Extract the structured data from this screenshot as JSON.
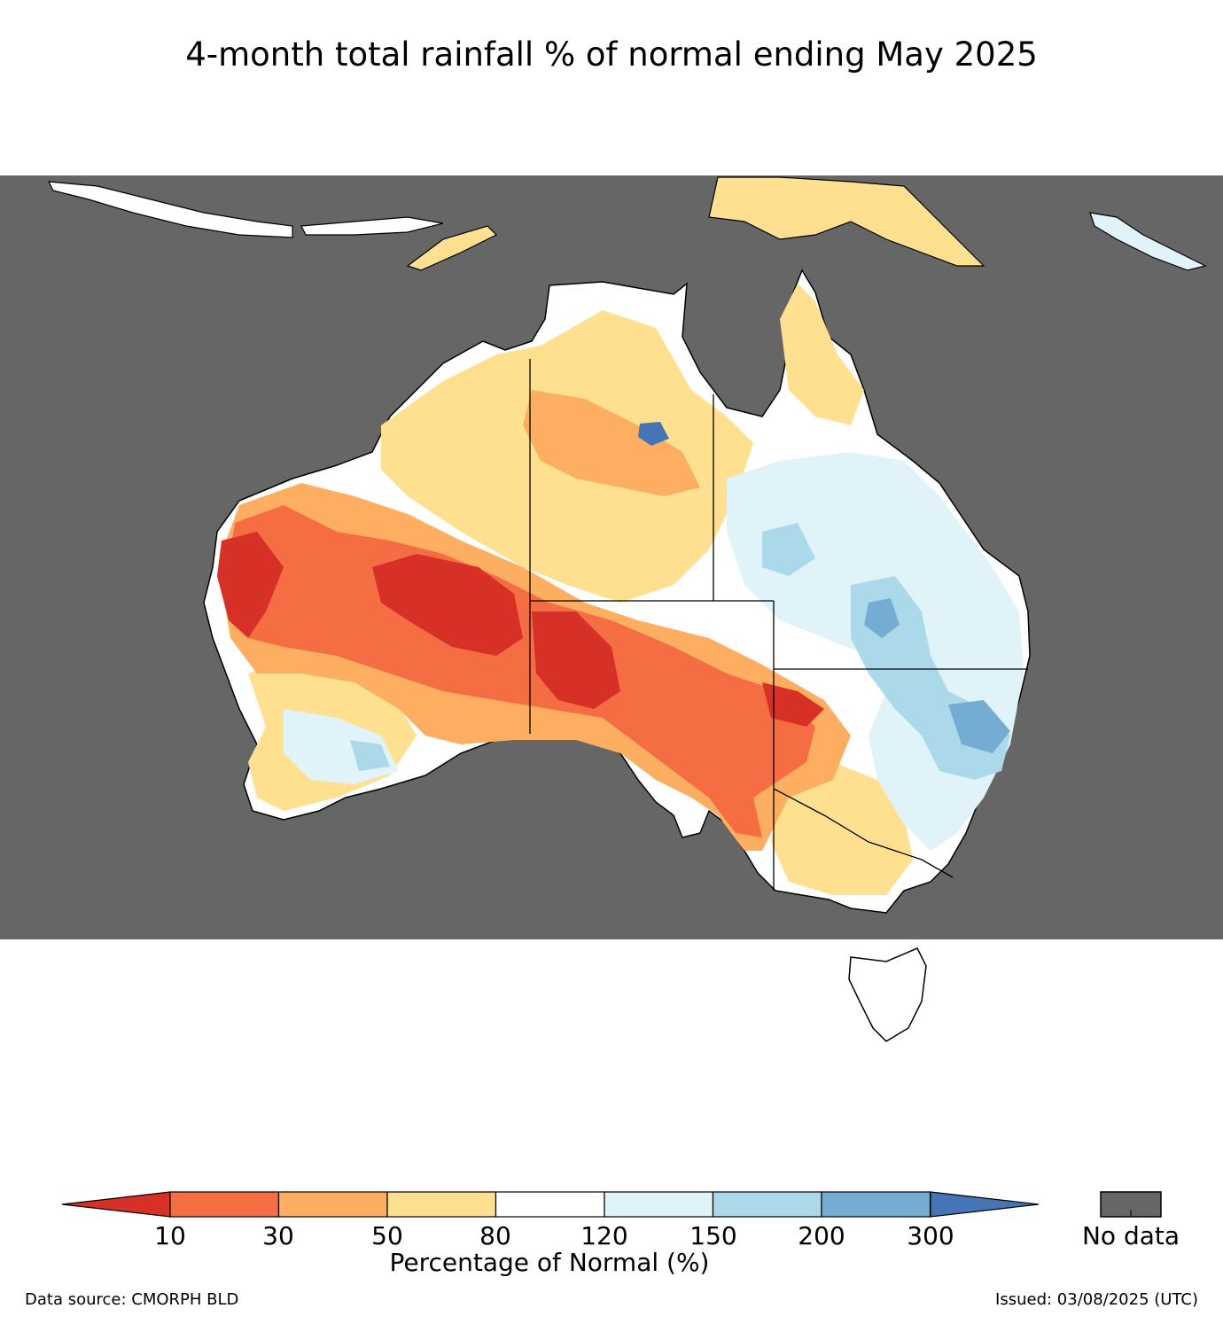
{
  "title": "4-month total rainfall % of normal ending May 2025",
  "legend": {
    "ticks": [
      "10",
      "30",
      "50",
      "80",
      "120",
      "150",
      "200",
      "300"
    ],
    "label": "Percentage of Normal (%)",
    "colors": [
      "#d73027",
      "#f46d43",
      "#fdae61",
      "#fee090",
      "#ffffff",
      "#e0f3f8",
      "#abd9e9",
      "#74add1",
      "#4575b4"
    ],
    "no_data_label": "No data",
    "no_data_color": "#666666"
  },
  "footer": {
    "source": "Data source: CMORPH BLD",
    "issued": "Issued: 03/08/2025 (UTC)"
  }
}
